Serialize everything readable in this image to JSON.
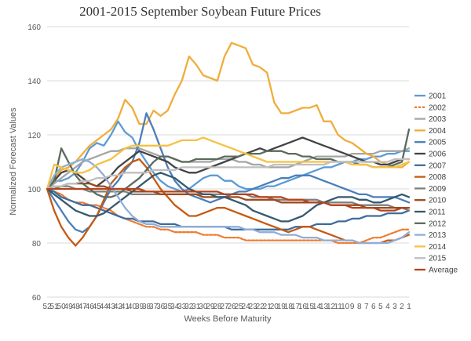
{
  "chart_data": {
    "type": "line",
    "title": "2001-2015 September Soybean Future Prices",
    "xlabel": "Weeks Before Maturity",
    "ylabel": "Normalized Forecast Values",
    "ylim": [
      60,
      160
    ],
    "yticks": [
      60,
      80,
      100,
      120,
      140,
      160
    ],
    "grid": true,
    "legend_position": "right",
    "x": [
      52,
      51,
      50,
      49,
      48,
      47,
      46,
      45,
      44,
      43,
      42,
      41,
      40,
      39,
      38,
      37,
      36,
      35,
      34,
      33,
      32,
      31,
      30,
      29,
      28,
      27,
      26,
      25,
      24,
      23,
      22,
      21,
      20,
      19,
      18,
      17,
      16,
      15,
      14,
      13,
      12,
      11,
      10,
      9,
      8,
      7,
      6,
      5,
      4,
      3,
      2,
      1
    ],
    "x_tick_labels": [
      "52",
      "51",
      "50",
      "49",
      "48",
      "47",
      "46",
      "45",
      "44",
      "43",
      "42",
      "41",
      "40",
      "39",
      "38",
      "37",
      "36",
      "35",
      "34",
      "33",
      "32",
      "31",
      "30",
      "29",
      "28",
      "27",
      "26",
      "25",
      "24",
      "23",
      "22",
      "21",
      "20",
      "19",
      "18",
      "17",
      "16",
      "15",
      "14",
      "13",
      "12",
      "11",
      "10",
      "9",
      "8",
      "7",
      "6",
      "5",
      "4",
      "3",
      "2",
      "1"
    ],
    "series": [
      {
        "name": "2001",
        "color": "#5b9bd5",
        "dash": false,
        "values": [
          100,
          103,
          103,
          104,
          106,
          110,
          115,
          117,
          116,
          120,
          125,
          121,
          119,
          114,
          110,
          106,
          103,
          101,
          100,
          99,
          100,
          102,
          104,
          105,
          105,
          103,
          103,
          101,
          100,
          100,
          100,
          101,
          101,
          102,
          103,
          104,
          105,
          106,
          107,
          108,
          108,
          109,
          110,
          110,
          111,
          111,
          112,
          112,
          113,
          113,
          114,
          114
        ]
      },
      {
        "name": "2002",
        "color": "#ed7d31",
        "dash": true,
        "values": [
          100,
          99,
          98,
          96,
          95,
          95,
          94,
          94,
          93,
          92,
          90,
          89,
          88,
          87,
          86,
          86,
          85,
          85,
          84,
          84,
          84,
          84,
          83,
          83,
          83,
          82,
          82,
          82,
          81,
          81,
          81,
          81,
          81,
          81,
          81,
          81,
          81,
          81,
          81,
          81,
          81,
          80,
          80,
          80,
          80,
          81,
          82,
          82,
          83,
          84,
          85,
          85
        ]
      },
      {
        "name": "2003",
        "color": "#a5a5a5",
        "dash": false,
        "values": [
          100,
          102,
          104,
          106,
          108,
          110,
          111,
          112,
          113,
          114,
          114,
          115,
          115,
          115,
          114,
          113,
          112,
          112,
          111,
          110,
          110,
          110,
          110,
          110,
          111,
          111,
          111,
          110,
          110,
          109,
          109,
          108,
          108,
          108,
          108,
          109,
          110,
          111,
          112,
          112,
          112,
          112,
          112,
          113,
          113,
          113,
          113,
          114,
          114,
          114,
          114,
          115
        ]
      },
      {
        "name": "2004",
        "color": "#f0ad3b",
        "dash": false,
        "values": [
          100,
          104,
          107,
          108,
          110,
          113,
          116,
          118,
          120,
          122,
          126,
          133,
          130,
          124,
          124,
          129,
          127,
          129,
          135,
          140,
          149,
          146,
          142,
          141,
          140,
          149,
          154,
          153,
          152,
          146,
          145,
          143,
          132,
          128,
          128,
          129,
          130,
          130,
          131,
          125,
          125,
          120,
          118,
          117,
          115,
          113,
          112,
          110,
          109,
          108,
          108,
          110
        ]
      },
      {
        "name": "2005",
        "color": "#4a7ebb",
        "dash": false,
        "values": [
          100,
          96,
          92,
          88,
          85,
          84,
          86,
          90,
          95,
          100,
          103,
          107,
          110,
          117,
          128,
          122,
          115,
          108,
          103,
          100,
          98,
          97,
          96,
          95,
          96,
          97,
          98,
          99,
          99,
          100,
          101,
          102,
          103,
          104,
          104,
          105,
          105,
          105,
          104,
          103,
          102,
          101,
          100,
          99,
          98,
          98,
          97,
          97,
          97,
          97,
          96,
          95
        ]
      },
      {
        "name": "2006",
        "color": "#434343",
        "dash": false,
        "values": [
          100,
          103,
          106,
          107,
          106,
          104,
          102,
          101,
          103,
          105,
          108,
          110,
          112,
          114,
          113,
          112,
          111,
          110,
          108,
          107,
          106,
          106,
          107,
          108,
          109,
          110,
          111,
          112,
          113,
          114,
          115,
          114,
          115,
          116,
          117,
          118,
          119,
          118,
          117,
          116,
          115,
          114,
          113,
          112,
          111,
          110,
          110,
          109,
          109,
          110,
          111,
          111
        ]
      },
      {
        "name": "2007",
        "color": "#3f6c9e",
        "dash": false,
        "values": [
          100,
          99,
          97,
          96,
          95,
          94,
          94,
          93,
          92,
          91,
          90,
          89,
          89,
          88,
          88,
          88,
          87,
          87,
          87,
          86,
          86,
          86,
          86,
          86,
          86,
          86,
          85,
          85,
          85,
          85,
          85,
          85,
          85,
          85,
          85,
          86,
          86,
          86,
          87,
          87,
          87,
          88,
          88,
          89,
          89,
          90,
          90,
          90,
          91,
          91,
          91,
          92
        ]
      },
      {
        "name": "2008",
        "color": "#c55a11",
        "dash": false,
        "values": [
          100,
          92,
          86,
          82,
          79,
          82,
          86,
          90,
          96,
          102,
          105,
          108,
          110,
          111,
          108,
          104,
          100,
          97,
          94,
          92,
          90,
          90,
          91,
          92,
          93,
          93,
          92,
          91,
          90,
          89,
          88,
          87,
          86,
          85,
          84,
          85,
          86,
          86,
          85,
          84,
          83,
          82,
          81,
          81,
          80,
          80,
          80,
          80,
          81,
          81,
          82,
          83
        ]
      },
      {
        "name": "2009",
        "color": "#7f7f7f",
        "dash": false,
        "values": [
          100,
          100,
          101,
          101,
          100,
          100,
          99,
          99,
          99,
          99,
          99,
          99,
          98,
          98,
          98,
          98,
          98,
          98,
          98,
          98,
          98,
          98,
          98,
          98,
          98,
          98,
          98,
          98,
          98,
          97,
          97,
          97,
          96,
          96,
          96,
          96,
          96,
          96,
          96,
          95,
          95,
          95,
          95,
          95,
          94,
          94,
          94,
          94,
          94,
          93,
          93,
          92
        ]
      },
      {
        "name": "2010",
        "color": "#9e4a1c",
        "dash": false,
        "values": [
          100,
          101,
          101,
          102,
          102,
          102,
          102,
          101,
          101,
          100,
          100,
          100,
          99,
          99,
          99,
          99,
          98,
          98,
          98,
          98,
          98,
          98,
          97,
          97,
          97,
          97,
          97,
          97,
          96,
          96,
          96,
          96,
          96,
          95,
          95,
          95,
          95,
          95,
          95,
          95,
          94,
          94,
          94,
          94,
          94,
          93,
          93,
          93,
          93,
          93,
          93,
          93
        ]
      },
      {
        "name": "2011",
        "color": "#36596e",
        "dash": false,
        "values": [
          100,
          98,
          96,
          94,
          92,
          91,
          90,
          90,
          91,
          93,
          95,
          97,
          99,
          101,
          103,
          105,
          106,
          105,
          104,
          102,
          100,
          99,
          98,
          98,
          97,
          97,
          96,
          95,
          94,
          92,
          91,
          90,
          89,
          88,
          88,
          89,
          90,
          92,
          94,
          95,
          96,
          97,
          97,
          97,
          96,
          96,
          95,
          95,
          96,
          97,
          98,
          97
        ]
      },
      {
        "name": "2012",
        "color": "#5a6b5c",
        "dash": false,
        "values": [
          100,
          103,
          115,
          110,
          105,
          102,
          100,
          98,
          97,
          97,
          98,
          100,
          102,
          104,
          107,
          110,
          112,
          112,
          111,
          110,
          110,
          111,
          111,
          111,
          111,
          112,
          112,
          112,
          113,
          113,
          113,
          114,
          114,
          114,
          113,
          113,
          112,
          112,
          111,
          111,
          111,
          110,
          110,
          110,
          109,
          109,
          108,
          108,
          108,
          109,
          110,
          122
        ]
      },
      {
        "name": "2013",
        "color": "#8faed8",
        "dash": false,
        "values": [
          100,
          105,
          108,
          109,
          110,
          111,
          110,
          108,
          105,
          101,
          97,
          93,
          90,
          88,
          87,
          87,
          86,
          86,
          86,
          86,
          86,
          86,
          86,
          86,
          86,
          86,
          86,
          86,
          85,
          85,
          84,
          84,
          84,
          83,
          83,
          83,
          82,
          82,
          82,
          81,
          81,
          81,
          81,
          81,
          80,
          80,
          80,
          80,
          80,
          81,
          82,
          84
        ]
      },
      {
        "name": "2014",
        "color": "#f5c242",
        "dash": false,
        "values": [
          100,
          109,
          108,
          107,
          106,
          106,
          107,
          109,
          110,
          111,
          113,
          115,
          116,
          116,
          116,
          116,
          116,
          116,
          117,
          118,
          118,
          118,
          119,
          118,
          117,
          116,
          115,
          114,
          113,
          112,
          111,
          110,
          110,
          110,
          110,
          110,
          110,
          110,
          110,
          110,
          110,
          110,
          110,
          109,
          109,
          109,
          108,
          108,
          108,
          108,
          109,
          110
        ]
      },
      {
        "name": "2015",
        "color": "#bfbfbf",
        "dash": false,
        "values": [
          100,
          101,
          101,
          102,
          102,
          103,
          103,
          104,
          104,
          105,
          105,
          106,
          106,
          106,
          106,
          107,
          107,
          107,
          107,
          108,
          108,
          108,
          108,
          108,
          108,
          108,
          108,
          108,
          108,
          108,
          108,
          108,
          109,
          109,
          109,
          109,
          109,
          109,
          109,
          109,
          110,
          110,
          110,
          110,
          110,
          110,
          110,
          110,
          110,
          111,
          111,
          111
        ]
      },
      {
        "name": "Average",
        "color": "#b5441d",
        "dash": false,
        "values": [
          100,
          100,
          100,
          100,
          100,
          100,
          100,
          100,
          100,
          100,
          100,
          100,
          100,
          100,
          99,
          99,
          99,
          99,
          99,
          99,
          99,
          99,
          99,
          99,
          99,
          98,
          98,
          98,
          98,
          98,
          97,
          97,
          97,
          97,
          96,
          96,
          96,
          95,
          95,
          95,
          94,
          94,
          94,
          93,
          93,
          93,
          93,
          92,
          92,
          92,
          93,
          93
        ]
      }
    ]
  }
}
